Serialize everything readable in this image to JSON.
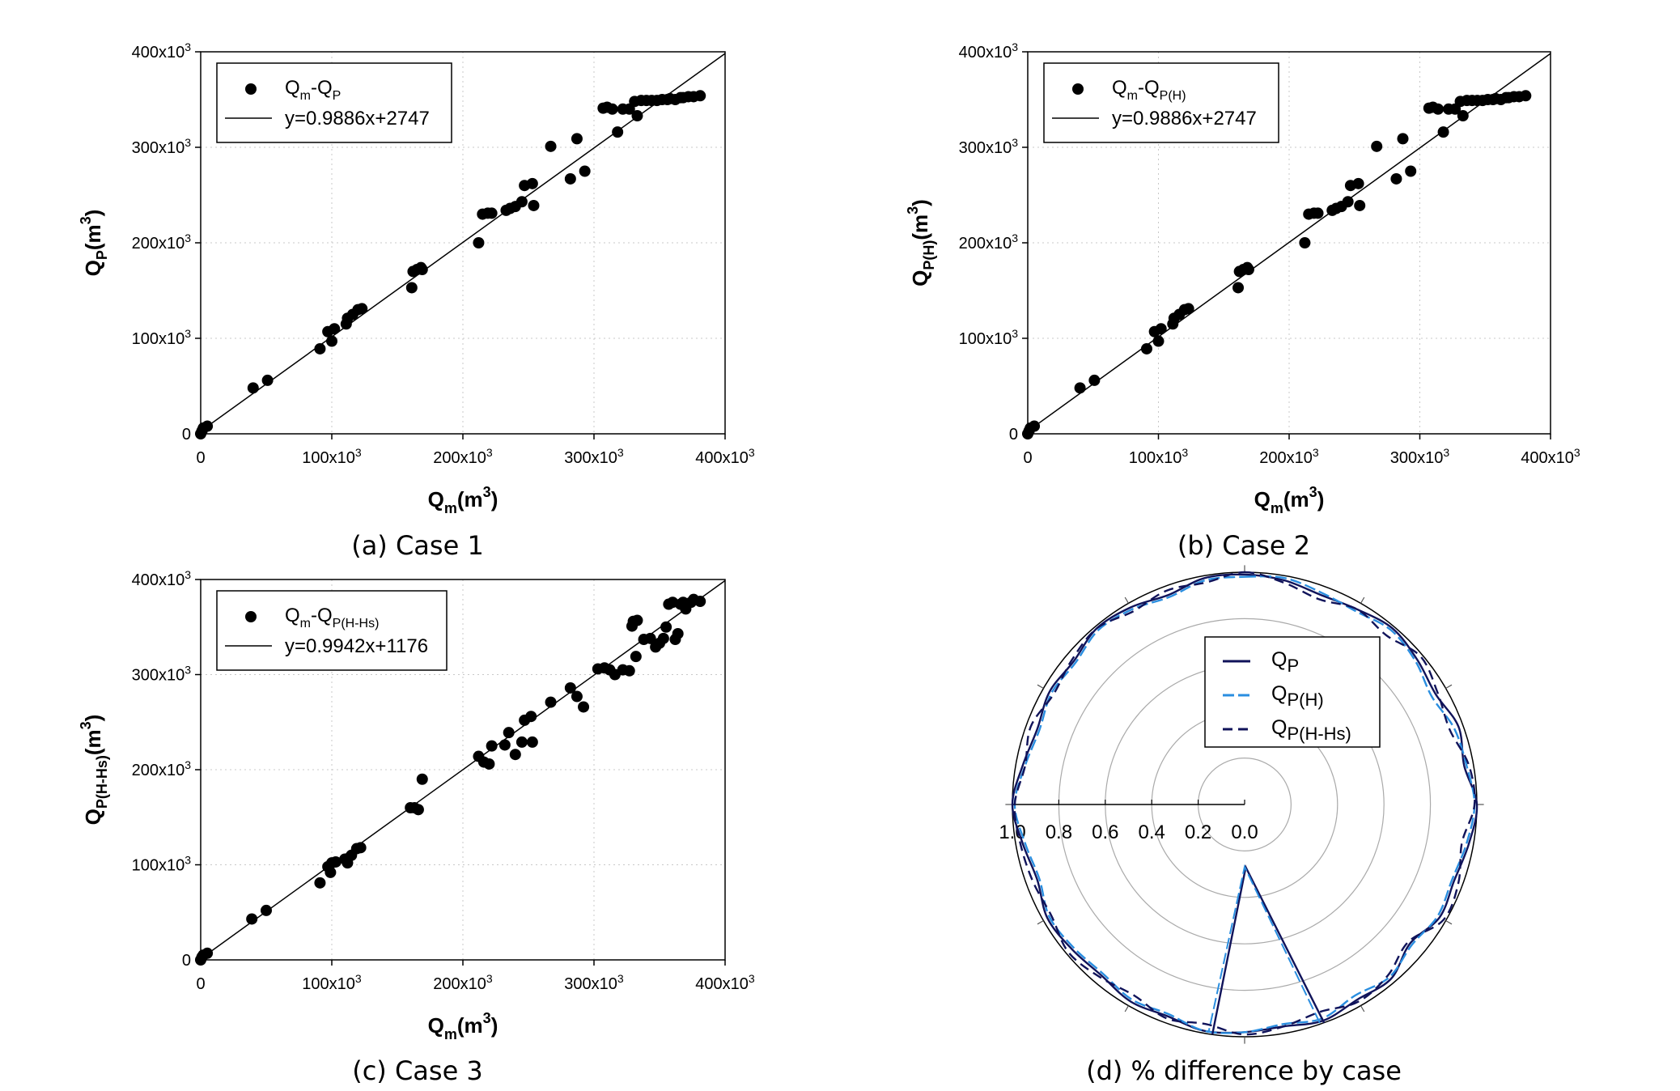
{
  "chart_data": [
    {
      "type": "scatter",
      "panel": "a",
      "caption": "(a) Case 1",
      "xlabel": "Q_m(m^3)",
      "ylabel": "Q_P(m^3)",
      "xlim": [
        0,
        400000
      ],
      "ylim": [
        0,
        400000
      ],
      "xticks": [
        "0",
        "100x10^3",
        "200x10^3",
        "300x10^3",
        "400x10^3"
      ],
      "yticks": [
        "0",
        "100x10^3",
        "200x10^3",
        "300x10^3",
        "400x10^3"
      ],
      "legend": {
        "position": "top-left",
        "points_label": "Qm-QP",
        "line_label": "y=0.9886x+2747"
      },
      "fit": {
        "slope": 0.9886,
        "intercept": 2747
      },
      "points": [
        [
          0,
          0
        ],
        [
          1000,
          3000
        ],
        [
          2000,
          6000
        ],
        [
          5000,
          8000
        ],
        [
          40000,
          48000
        ],
        [
          51000,
          56000
        ],
        [
          91000,
          89000
        ],
        [
          97000,
          107000
        ],
        [
          100000,
          97000
        ],
        [
          102000,
          110000
        ],
        [
          111000,
          115000
        ],
        [
          112000,
          121000
        ],
        [
          116000,
          125000
        ],
        [
          120000,
          130000
        ],
        [
          123000,
          131000
        ],
        [
          161000,
          153000
        ],
        [
          162000,
          170000
        ],
        [
          165000,
          172000
        ],
        [
          168000,
          174000
        ],
        [
          169000,
          172000
        ],
        [
          212000,
          200000
        ],
        [
          215000,
          230000
        ],
        [
          219000,
          231000
        ],
        [
          222000,
          231000
        ],
        [
          233000,
          234000
        ],
        [
          236000,
          236000
        ],
        [
          240000,
          238000
        ],
        [
          245000,
          243000
        ],
        [
          247000,
          260000
        ],
        [
          253000,
          262000
        ],
        [
          254000,
          239000
        ],
        [
          267000,
          301000
        ],
        [
          282000,
          267000
        ],
        [
          287000,
          309000
        ],
        [
          293000,
          275000
        ],
        [
          307000,
          341000
        ],
        [
          310000,
          342000
        ],
        [
          314000,
          340000
        ],
        [
          318000,
          316000
        ],
        [
          322000,
          340000
        ],
        [
          327000,
          340000
        ],
        [
          331000,
          348000
        ],
        [
          333000,
          333000
        ],
        [
          336000,
          349000
        ],
        [
          340000,
          349000
        ],
        [
          344000,
          349000
        ],
        [
          348000,
          349000
        ],
        [
          352000,
          350000
        ],
        [
          356000,
          350000
        ],
        [
          358000,
          351000
        ],
        [
          362000,
          350000
        ],
        [
          366000,
          352000
        ],
        [
          368000,
          352000
        ],
        [
          372000,
          353000
        ],
        [
          376000,
          353000
        ],
        [
          381000,
          354000
        ]
      ]
    },
    {
      "type": "scatter",
      "panel": "b",
      "caption": "(b) Case 2",
      "xlabel": "Q_m(m^3)",
      "ylabel": "Q_P(H)(m^3)",
      "xlim": [
        0,
        400000
      ],
      "ylim": [
        0,
        400000
      ],
      "xticks": [
        "0",
        "100x10^3",
        "200x10^3",
        "300x10^3",
        "400x10^3"
      ],
      "yticks": [
        "0",
        "100x10^3",
        "200x10^3",
        "300x10^3",
        "400x10^3"
      ],
      "legend": {
        "position": "top-left",
        "points_label": "Qm-QP(H)",
        "line_label": "y=0.9886x+2747"
      },
      "fit": {
        "slope": 0.9886,
        "intercept": 2747
      },
      "points": [
        [
          0,
          0
        ],
        [
          1000,
          3000
        ],
        [
          2000,
          6000
        ],
        [
          5000,
          8000
        ],
        [
          40000,
          48000
        ],
        [
          51000,
          56000
        ],
        [
          91000,
          89000
        ],
        [
          97000,
          107000
        ],
        [
          100000,
          97000
        ],
        [
          102000,
          110000
        ],
        [
          111000,
          115000
        ],
        [
          112000,
          121000
        ],
        [
          116000,
          125000
        ],
        [
          120000,
          130000
        ],
        [
          123000,
          131000
        ],
        [
          161000,
          153000
        ],
        [
          162000,
          170000
        ],
        [
          165000,
          172000
        ],
        [
          168000,
          174000
        ],
        [
          169000,
          172000
        ],
        [
          212000,
          200000
        ],
        [
          215000,
          230000
        ],
        [
          219000,
          231000
        ],
        [
          222000,
          231000
        ],
        [
          233000,
          234000
        ],
        [
          236000,
          236000
        ],
        [
          240000,
          238000
        ],
        [
          245000,
          243000
        ],
        [
          247000,
          260000
        ],
        [
          253000,
          262000
        ],
        [
          254000,
          239000
        ],
        [
          267000,
          301000
        ],
        [
          282000,
          267000
        ],
        [
          287000,
          309000
        ],
        [
          293000,
          275000
        ],
        [
          307000,
          341000
        ],
        [
          310000,
          342000
        ],
        [
          314000,
          340000
        ],
        [
          318000,
          316000
        ],
        [
          322000,
          340000
        ],
        [
          327000,
          340000
        ],
        [
          331000,
          348000
        ],
        [
          333000,
          333000
        ],
        [
          336000,
          349000
        ],
        [
          340000,
          349000
        ],
        [
          344000,
          349000
        ],
        [
          348000,
          349000
        ],
        [
          352000,
          350000
        ],
        [
          356000,
          350000
        ],
        [
          358000,
          351000
        ],
        [
          362000,
          350000
        ],
        [
          366000,
          352000
        ],
        [
          368000,
          352000
        ],
        [
          372000,
          353000
        ],
        [
          376000,
          353000
        ],
        [
          381000,
          354000
        ]
      ]
    },
    {
      "type": "scatter",
      "panel": "c",
      "caption": "(c) Case 3",
      "xlabel": "Q_m(m^3)",
      "ylabel": "Q_P(H-Hs)(m^3)",
      "xlim": [
        0,
        400000
      ],
      "ylim": [
        0,
        400000
      ],
      "xticks": [
        "0",
        "100x10^3",
        "200x10^3",
        "300x10^3",
        "400x10^3"
      ],
      "yticks": [
        "0",
        "100x10^3",
        "200x10^3",
        "300x10^3",
        "400x10^3"
      ],
      "legend": {
        "position": "top-left",
        "points_label": "Qm-QP(H-Hs)",
        "line_label": "y=0.9942x+1176"
      },
      "fit": {
        "slope": 0.9942,
        "intercept": 1176
      },
      "points": [
        [
          0,
          0
        ],
        [
          1000,
          3000
        ],
        [
          2000,
          5000
        ],
        [
          5000,
          7000
        ],
        [
          39000,
          43000
        ],
        [
          50000,
          52000
        ],
        [
          91000,
          81000
        ],
        [
          97000,
          98000
        ],
        [
          99000,
          92000
        ],
        [
          100000,
          102000
        ],
        [
          103000,
          103000
        ],
        [
          110000,
          106000
        ],
        [
          112000,
          102000
        ],
        [
          115000,
          110000
        ],
        [
          119000,
          117000
        ],
        [
          122000,
          118000
        ],
        [
          160000,
          160000
        ],
        [
          163000,
          160000
        ],
        [
          166000,
          158000
        ],
        [
          169000,
          190000
        ],
        [
          212000,
          214000
        ],
        [
          216000,
          208000
        ],
        [
          220000,
          206000
        ],
        [
          222000,
          225000
        ],
        [
          232000,
          226000
        ],
        [
          235000,
          239000
        ],
        [
          240000,
          216000
        ],
        [
          245000,
          229000
        ],
        [
          247000,
          252000
        ],
        [
          252000,
          256000
        ],
        [
          253000,
          229000
        ],
        [
          267000,
          271000
        ],
        [
          282000,
          286000
        ],
        [
          287000,
          277000
        ],
        [
          292000,
          266000
        ],
        [
          303000,
          306000
        ],
        [
          308000,
          307000
        ],
        [
          312000,
          305000
        ],
        [
          316000,
          300000
        ],
        [
          322000,
          305000
        ],
        [
          327000,
          304000
        ],
        [
          329000,
          351000
        ],
        [
          330000,
          356000
        ],
        [
          333000,
          357000
        ],
        [
          332000,
          319000
        ],
        [
          338000,
          337000
        ],
        [
          343000,
          338000
        ],
        [
          347000,
          329000
        ],
        [
          350000,
          333000
        ],
        [
          353000,
          338000
        ],
        [
          355000,
          350000
        ],
        [
          357000,
          374000
        ],
        [
          360000,
          376000
        ],
        [
          362000,
          337000
        ],
        [
          364000,
          343000
        ],
        [
          366000,
          374000
        ],
        [
          368000,
          376000
        ],
        [
          370000,
          369000
        ],
        [
          374000,
          376000
        ],
        [
          376000,
          379000
        ],
        [
          381000,
          377000
        ]
      ]
    },
    {
      "type": "polar",
      "panel": "d",
      "caption": "(d) % difference by case",
      "radial_ticks": [
        "1.0",
        "0.8",
        "0.6",
        "0.4",
        "0.2",
        "0.0"
      ],
      "rmax": 1.0,
      "legend": {
        "position": "top-right",
        "labels": [
          "QP",
          "QP(H)",
          "QP(H-Hs)"
        ]
      },
      "series": [
        {
          "name": "QP",
          "style": "solid",
          "color": "#10135a",
          "angles": [
            0,
            10,
            20,
            30,
            40,
            50,
            60,
            70,
            80,
            90,
            100,
            110,
            120,
            130,
            140,
            150,
            160,
            170,
            180,
            190,
            200,
            210,
            220,
            230,
            240,
            250,
            260,
            270,
            280,
            290,
            300,
            310,
            320,
            330,
            340,
            350
          ],
          "r": [
            0.99,
            0.98,
            0.96,
            0.97,
            0.99,
            0.97,
            0.95,
            0.98,
            0.96,
            1.0,
            0.98,
            0.96,
            0.97,
            0.93,
            0.98,
            0.97,
            0.99,
            0.97,
            0.98,
            0.99,
            0.97,
            0.98,
            0.96,
            0.97,
            0.98,
            0.95,
            0.97,
            1.0,
            0.97,
            0.95,
            0.97,
            0.96,
            0.99,
            0.98,
            0.96,
            0.99
          ]
        },
        {
          "name": "QP(H)",
          "style": "dashed",
          "color": "#2a8ee0",
          "angles": [
            0,
            10,
            20,
            30,
            40,
            50,
            60,
            70,
            80,
            90,
            100,
            110,
            120,
            130,
            140,
            150,
            160,
            170,
            180,
            190,
            200,
            210,
            220,
            230,
            240,
            250,
            260,
            270,
            280,
            290,
            300,
            310,
            320,
            330,
            340,
            350
          ],
          "r": [
            0.98,
            0.99,
            0.97,
            0.96,
            0.98,
            0.96,
            0.93,
            0.96,
            0.97,
            0.99,
            0.97,
            0.95,
            0.96,
            0.94,
            0.97,
            0.95,
            0.98,
            0.96,
            0.98,
            0.99,
            0.96,
            0.97,
            0.95,
            0.96,
            0.97,
            0.94,
            0.96,
            0.99,
            0.96,
            0.94,
            0.96,
            0.95,
            0.98,
            0.97,
            0.95,
            0.98
          ]
        },
        {
          "name": "QP(H-Hs)",
          "style": "dashed",
          "color": "#10135a",
          "angles": [
            0,
            10,
            20,
            30,
            40,
            50,
            60,
            70,
            80,
            90,
            100,
            110,
            120,
            130,
            140,
            150,
            160,
            170,
            180,
            190,
            200,
            210,
            220,
            230,
            240,
            250,
            260,
            270,
            280,
            290,
            300,
            310,
            320,
            330,
            340,
            350
          ],
          "r": [
            1.0,
            0.97,
            0.94,
            0.97,
            0.95,
            0.99,
            0.96,
            0.94,
            0.98,
            0.99,
            0.95,
            0.98,
            0.99,
            0.92,
            0.96,
            0.98,
            0.95,
            0.97,
            0.99,
            0.96,
            0.98,
            0.95,
            0.97,
            0.99,
            0.96,
            0.97,
            0.98,
            0.99,
            0.96,
            0.98,
            0.95,
            0.97,
            0.99,
            0.96,
            0.98,
            0.97
          ]
        }
      ],
      "spike": {
        "angles": [
          -20,
          -1,
          8
        ],
        "r": [
          1.0,
          0.27,
          1.0
        ]
      }
    }
  ],
  "labels": {
    "tick_zero": "0",
    "tick_100": "100x10",
    "tick_200": "200x10",
    "tick_300": "300x10",
    "tick_400": "400x10",
    "tick_exp": "3",
    "q": "Q",
    "sub_m": "m",
    "sub_p": "P",
    "sub_ph": "P(H)",
    "sub_phhs": "P(H-Hs)",
    "unit_open": "(m",
    "unit_close": ")",
    "exp3": "3",
    "dash": "-"
  }
}
